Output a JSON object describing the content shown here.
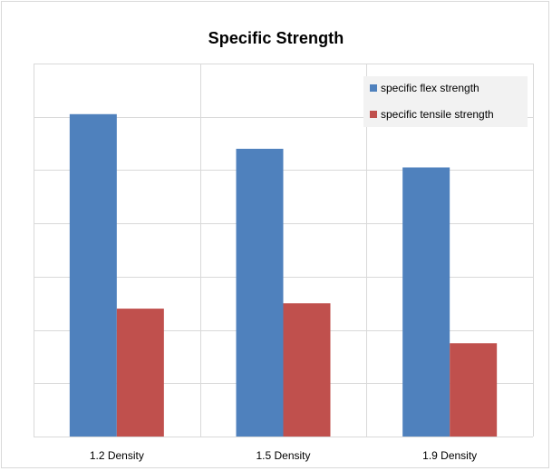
{
  "chart_data": {
    "type": "bar",
    "title": "Specific Strength",
    "categories": [
      "1.2 Density",
      "1.5 Density",
      "1.9 Density"
    ],
    "series": [
      {
        "name": "specific flex strength",
        "color": "#4f81bd",
        "values": [
          6.05,
          5.4,
          5.05
        ]
      },
      {
        "name": "specific tensile strength",
        "color": "#c0504d",
        "values": [
          2.4,
          2.5,
          1.75
        ]
      }
    ],
    "ylim": [
      0,
      7
    ],
    "xlabel": "",
    "ylabel": "",
    "grid": true,
    "legend": "top-right"
  }
}
